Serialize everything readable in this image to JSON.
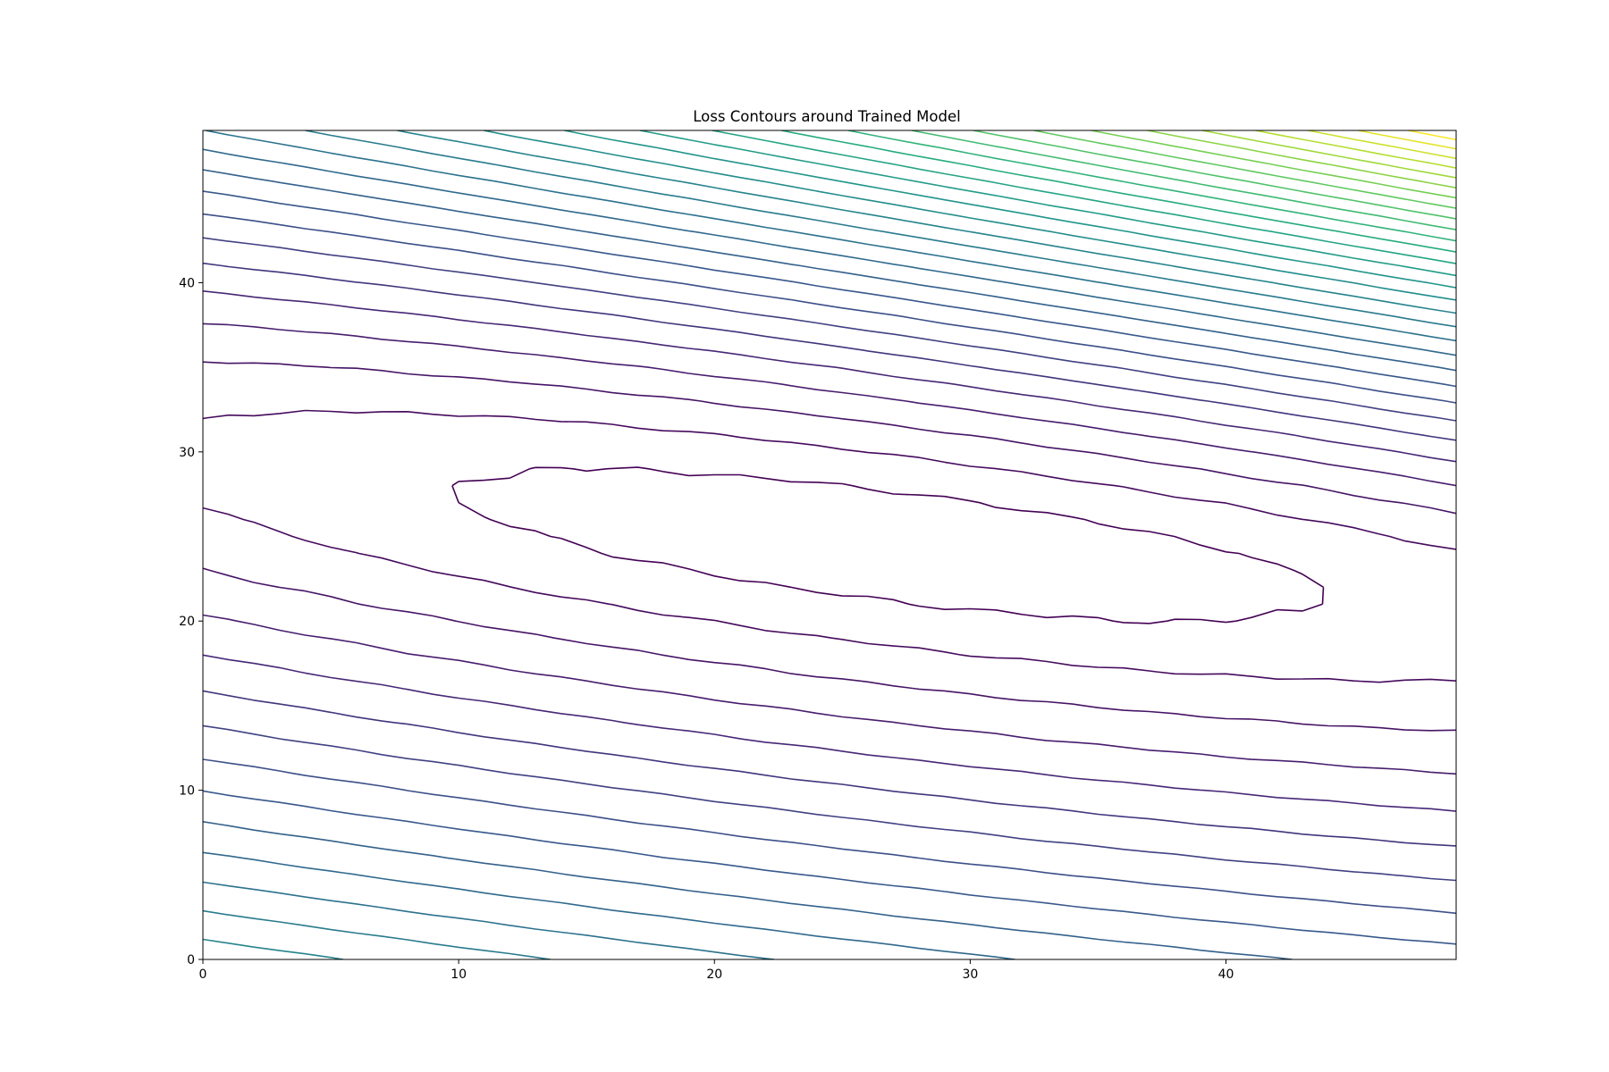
{
  "chart_data": {
    "type": "contour",
    "title": "Loss Contours around Trained Model",
    "xlabel": "",
    "ylabel": "",
    "xlim": [
      0,
      49
    ],
    "ylim": [
      0,
      49
    ],
    "x_ticks": [
      "0",
      "10",
      "20",
      "30",
      "40"
    ],
    "y_ticks": [
      "0",
      "10",
      "20",
      "30",
      "40"
    ],
    "grid": false,
    "colormap": "viridis",
    "level_count": 30,
    "grid_resolution": 50,
    "field_description": "elongated valley with minimum near (27, 25) tilted downward to the right; loss rises steeply toward the upper-right corner",
    "colors": {
      "low": "#440154",
      "mid": "#21918c",
      "high": "#fde725"
    }
  }
}
